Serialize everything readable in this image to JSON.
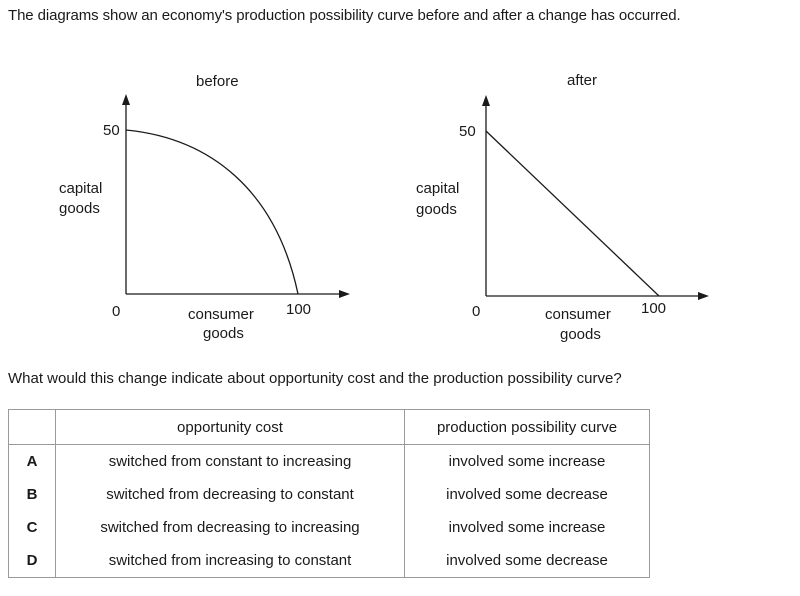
{
  "intro_text": "The diagrams show an economy's production possibility curve before and after a change has occurred.",
  "diagrams": [
    {
      "title": "before",
      "y_axis_label": [
        "capital",
        "goods"
      ],
      "y_max_label": "50",
      "origin_label": "0",
      "x_max_label": "100",
      "x_axis_label": [
        "consumer",
        "goods"
      ],
      "curve_shape": "concave"
    },
    {
      "title": "after",
      "y_axis_label": [
        "capital",
        "goods"
      ],
      "y_max_label": "50",
      "origin_label": "0",
      "x_max_label": "100",
      "x_axis_label": [
        "consumer",
        "goods"
      ],
      "curve_shape": "straight line"
    }
  ],
  "question": "What would this change indicate about opportunity cost and the production possibility curve?",
  "table": {
    "headers": [
      "",
      "opportunity cost",
      "production possibility curve"
    ],
    "rows": [
      {
        "option": "A",
        "opportunity_cost": "switched from constant to increasing",
        "ppc": "involved some increase"
      },
      {
        "option": "B",
        "opportunity_cost": "switched from decreasing to constant",
        "ppc": "involved some decrease"
      },
      {
        "option": "C",
        "opportunity_cost": "switched from decreasing to increasing",
        "ppc": "involved some increase"
      },
      {
        "option": "D",
        "opportunity_cost": "switched from increasing to constant",
        "ppc": "involved some decrease"
      }
    ]
  }
}
